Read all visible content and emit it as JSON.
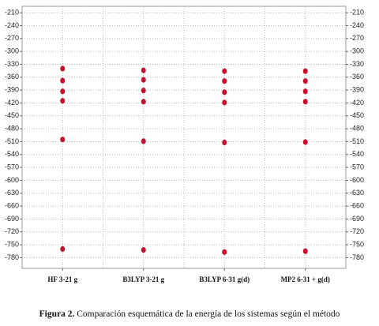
{
  "chart_data": {
    "type": "scatter",
    "categories": [
      "HF 3-21 g",
      "B3LYP 3-21 g",
      "B3LYP 6-31 g(d)",
      "MP2 6-31 + g(d)"
    ],
    "series": [
      {
        "color": "#c8102e",
        "values": [
          -340,
          -344,
          -346,
          -346
        ]
      },
      {
        "color": "#c8102e",
        "values": [
          -368,
          -366,
          -369,
          -369
        ]
      },
      {
        "color": "#c8102e",
        "values": [
          -393,
          -391,
          -395,
          -393
        ]
      },
      {
        "color": "#c8102e",
        "values": [
          -415,
          -417,
          -419,
          -417
        ]
      },
      {
        "color": "#c8102e",
        "values": [
          -505,
          -509,
          -512,
          -511
        ]
      },
      {
        "color": "#c8102e",
        "values": [
          -760,
          -762,
          -767,
          -765
        ]
      }
    ],
    "ylim": [
      -805,
      -195
    ],
    "yticks": [
      -210,
      -240,
      -270,
      -300,
      -330,
      -360,
      -390,
      -420,
      -450,
      -480,
      -510,
      -540,
      -570,
      -600,
      -630,
      -660,
      -690,
      -720,
      -750,
      -780
    ],
    "grid": true
  },
  "caption": {
    "label": "Figura 2.",
    "text": "Comparación esquemática de la energía de los sistemas según el método"
  }
}
